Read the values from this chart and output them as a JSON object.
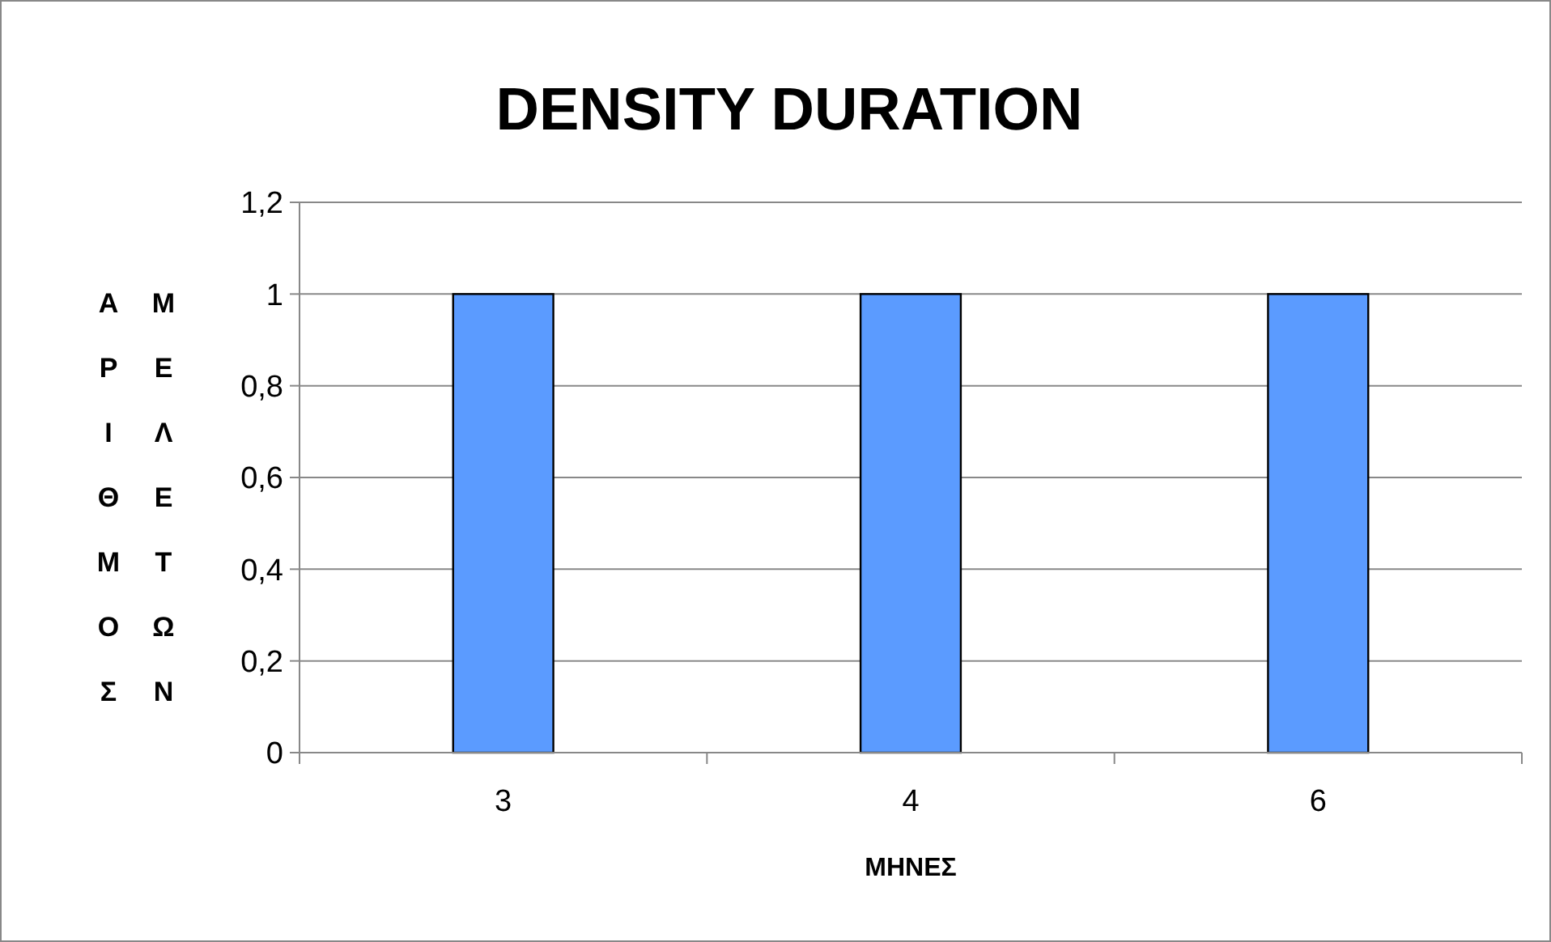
{
  "chart_data": {
    "type": "bar",
    "title": "DENSITY DURATION",
    "xlabel": "ΜΗΝΕΣ",
    "ylabel": "ΑΡΙΘΜΟΣ ΜΕΛΕΤΩΝ",
    "categories": [
      "3",
      "4",
      "6"
    ],
    "values": [
      1,
      1,
      1
    ],
    "color": "#5b9bff",
    "ylim": [
      0,
      1.2
    ],
    "yticks": [
      0,
      {
        "value": 0.2,
        "label": "0,2"
      },
      {
        "value": 0.4,
        "label": "0,4"
      },
      {
        "value": 0.6,
        "label": "0,6"
      },
      {
        "value": 0.8,
        "label": "0,8"
      },
      1,
      {
        "value": 1.2,
        "label": "1,2"
      }
    ],
    "grid": "y"
  }
}
